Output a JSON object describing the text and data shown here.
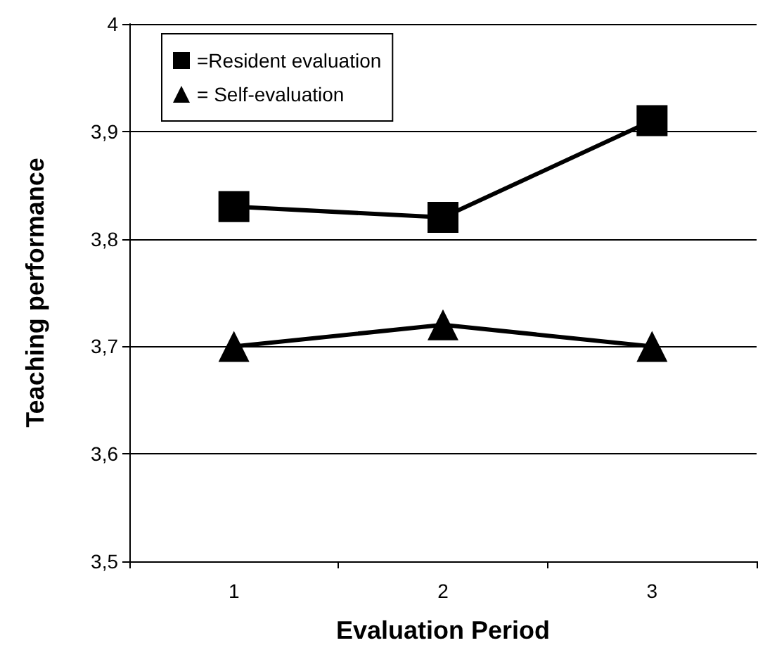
{
  "chart_data": {
    "type": "line",
    "xlabel": "Evaluation Period",
    "ylabel": "Teaching performance",
    "categories": [
      "1",
      "2",
      "3"
    ],
    "series": [
      {
        "name": "=Resident evaluation",
        "color": "#000000",
        "marker": "square",
        "values": [
          3.83,
          3.82,
          3.91
        ]
      },
      {
        "name": "= Self-evaluation",
        "color": "#000000",
        "marker": "triangle",
        "values": [
          3.7,
          3.72,
          3.7
        ]
      }
    ],
    "ylim": [
      3.5,
      4
    ],
    "yticks": [
      {
        "value": 3.5,
        "label": "3,5"
      },
      {
        "value": 3.6,
        "label": "3,6"
      },
      {
        "value": 3.7,
        "label": "3,7"
      },
      {
        "value": 3.8,
        "label": "3,8"
      },
      {
        "value": 3.9,
        "label": "3,9"
      },
      {
        "value": 4,
        "label": "4"
      }
    ],
    "grid": "y",
    "legend": "top left",
    "line_style": "solid"
  }
}
